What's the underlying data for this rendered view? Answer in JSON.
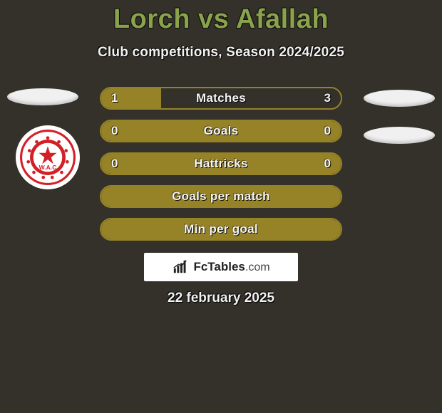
{
  "page": {
    "title": "Lorch vs Afallah",
    "subtitle": "Club competitions, Season 2024/2025",
    "date": "22 february 2025",
    "background": "#333129"
  },
  "brand": {
    "name": "FcTables",
    "ext": ".com"
  },
  "colors": {
    "title": "#8aa34a",
    "bar_border": "#968227",
    "bar_fill": "#968227",
    "bar_track": "#333129",
    "oval": "#f0f0f0",
    "brand_bg": "#ffffff"
  },
  "ovals": [
    {
      "pos": "tl"
    },
    {
      "pos": "tr"
    },
    {
      "pos": "br"
    }
  ],
  "club_badge": {
    "team": "Wydad AC",
    "primary": "#d32027",
    "white": "#ffffff"
  },
  "bars": [
    {
      "label": "Matches",
      "left": "1",
      "right": "3",
      "fill_pct": 25,
      "show_vals": true
    },
    {
      "label": "Goals",
      "left": "0",
      "right": "0",
      "fill_pct": 100,
      "show_vals": true
    },
    {
      "label": "Hattricks",
      "left": "0",
      "right": "0",
      "fill_pct": 100,
      "show_vals": true
    },
    {
      "label": "Goals per match",
      "left": "",
      "right": "",
      "fill_pct": 100,
      "show_vals": false
    },
    {
      "label": "Min per goal",
      "left": "",
      "right": "",
      "fill_pct": 100,
      "show_vals": false
    }
  ]
}
